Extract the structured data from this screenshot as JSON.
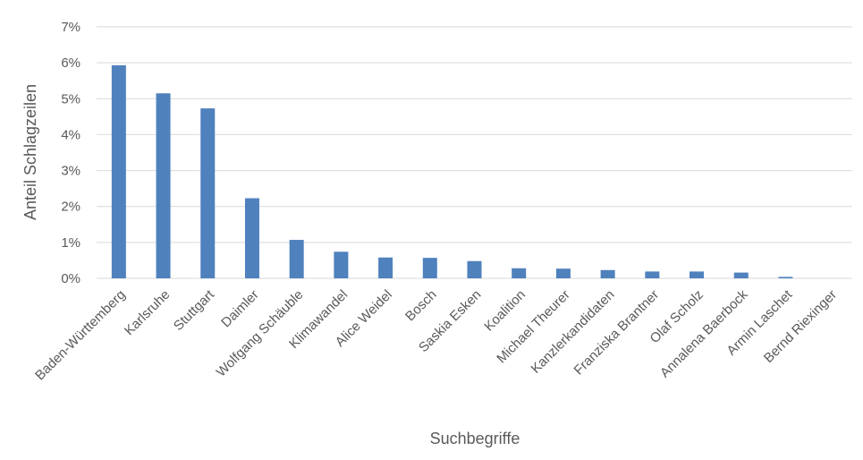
{
  "chart_data": {
    "type": "bar",
    "xlabel": "Suchbegriffe",
    "ylabel": "Anteil Schlagzeilen",
    "ylim": [
      0,
      7
    ],
    "yticks": [
      "0%",
      "1%",
      "2%",
      "3%",
      "4%",
      "5%",
      "6%",
      "7%"
    ],
    "grid": true,
    "categories": [
      "Baden-Württemberg",
      "Karlsruhe",
      "Stuttgart",
      "Daimler",
      "Wolfgang Schäuble",
      "Klimawandel",
      "Alice Weidel",
      "Bosch",
      "Saskia Esken",
      "Koalition",
      "Michael Theurer",
      "Kanzlerkandidaten",
      "Franziska Brantner",
      "Olaf Scholz",
      "Annalena Baerbock",
      "Armin Laschet",
      "Bernd Riexinger"
    ],
    "values": [
      5.93,
      5.15,
      4.73,
      2.23,
      1.07,
      0.74,
      0.58,
      0.57,
      0.48,
      0.28,
      0.27,
      0.23,
      0.19,
      0.19,
      0.16,
      0.04,
      0.0
    ],
    "bar_color": "#4f81bd"
  }
}
